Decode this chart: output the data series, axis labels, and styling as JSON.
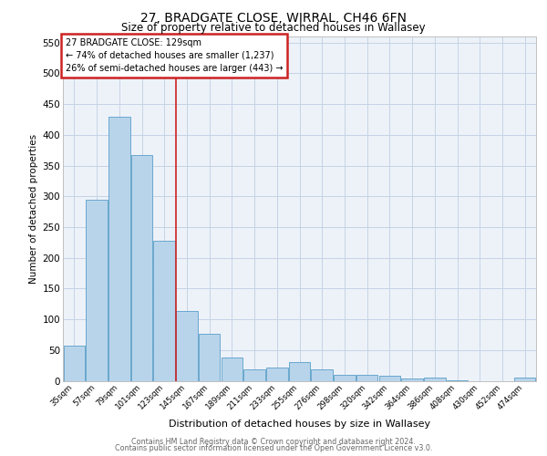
{
  "title1": "27, BRADGATE CLOSE, WIRRAL, CH46 6FN",
  "title2": "Size of property relative to detached houses in Wallasey",
  "xlabel": "Distribution of detached houses by size in Wallasey",
  "ylabel": "Number of detached properties",
  "categories": [
    "35sqm",
    "57sqm",
    "79sqm",
    "101sqm",
    "123sqm",
    "145sqm",
    "167sqm",
    "189sqm",
    "211sqm",
    "233sqm",
    "255sqm",
    "276sqm",
    "298sqm",
    "320sqm",
    "342sqm",
    "364sqm",
    "386sqm",
    "408sqm",
    "430sqm",
    "452sqm",
    "474sqm"
  ],
  "values": [
    57,
    295,
    430,
    367,
    228,
    113,
    76,
    38,
    18,
    22,
    30,
    18,
    10,
    10,
    8,
    3,
    5,
    1,
    0,
    0,
    5
  ],
  "bar_color": "#b8d4eb",
  "bar_edge_color": "#5a9ec8",
  "property_label": "27 BRADGATE CLOSE: 129sqm",
  "annotation_line1": "← 74% of detached houses are smaller (1,237)",
  "annotation_line2": "26% of semi-detached houses are larger (443) →",
  "vline_x_index": 4.5,
  "vline_color": "#cc2222",
  "annotation_box_color": "#cc2222",
  "ylim": [
    0,
    560
  ],
  "yticks": [
    0,
    50,
    100,
    150,
    200,
    250,
    300,
    350,
    400,
    450,
    500,
    550
  ],
  "footer_line1": "Contains HM Land Registry data © Crown copyright and database right 2024.",
  "footer_line2": "Contains public sector information licensed under the Open Government Licence v3.0.",
  "background_color": "#ffffff",
  "plot_background_color": "#edf2f9",
  "grid_color": "#c5d3e5"
}
